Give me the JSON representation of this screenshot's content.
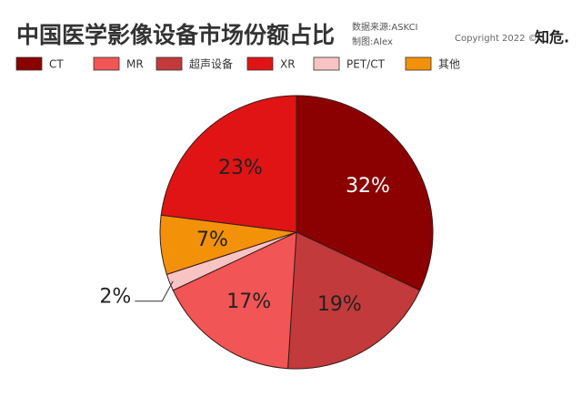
{
  "chart_data": {
    "type": "pie",
    "title": "中国医学影像设备市场份额占比",
    "source": "数据来源:ASKCI",
    "author": "制图:Alex",
    "copyright": "Copyright 2022 ©",
    "logo": "知危.",
    "categories": [
      "CT",
      "超声设备",
      "MR",
      "PET/CT",
      "其他",
      "XR"
    ],
    "values": [
      32,
      19,
      17,
      2,
      7,
      23
    ],
    "value_labels": [
      "32%",
      "19%",
      "17%",
      "2%",
      "7%",
      "23%"
    ],
    "colors": [
      "#8b0000",
      "#c23a3c",
      "#f25555",
      "#f8c3c3",
      "#f39208",
      "#e01414"
    ],
    "label_colors": [
      "#ffffff",
      "#222222",
      "#222222",
      "#222222",
      "#222222",
      "#222222"
    ]
  }
}
